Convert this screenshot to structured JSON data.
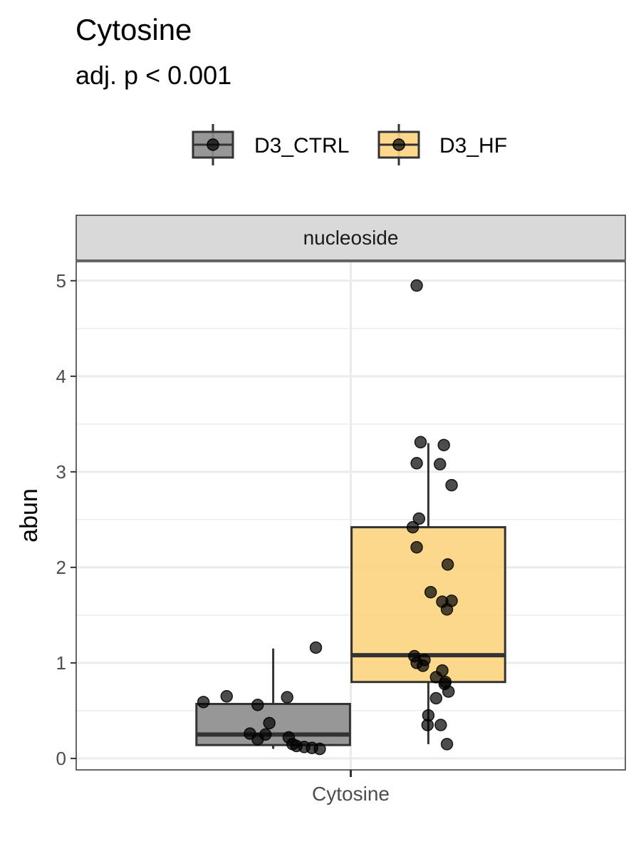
{
  "chart_data": {
    "type": "boxplot",
    "title": "Cytosine",
    "subtitle": "adj. p < 0.001",
    "xlabel": "",
    "ylabel": "abun",
    "facet": "nucleoside",
    "categories": [
      "Cytosine"
    ],
    "ylim": [
      -0.12,
      5.2
    ],
    "yticks": [
      0,
      1,
      2,
      3,
      4,
      5
    ],
    "grid": true,
    "legend_position": "top",
    "series": [
      {
        "name": "D3_CTRL",
        "color": "#8c8c8c",
        "box": {
          "min": 0.1,
          "q1": 0.14,
          "median": 0.25,
          "q3": 0.57,
          "max": 1.15
        },
        "points": [
          1.16,
          0.65,
          0.64,
          0.59,
          0.56,
          0.37,
          0.26,
          0.25,
          0.22,
          0.2,
          0.15,
          0.13,
          0.12,
          0.11,
          0.1
        ]
      },
      {
        "name": "D3_HF",
        "color": "#fbd47f",
        "box": {
          "min": 0.15,
          "q1": 0.8,
          "median": 1.08,
          "q3": 2.42,
          "max": 3.3
        },
        "points": [
          4.95,
          3.31,
          3.28,
          3.09,
          3.08,
          2.86,
          2.51,
          2.42,
          2.21,
          2.03,
          1.74,
          1.65,
          1.64,
          1.56,
          1.07,
          1.03,
          1.0,
          0.97,
          0.92,
          0.85,
          0.8,
          0.78,
          0.7,
          0.63,
          0.45,
          0.35,
          0.35,
          0.15
        ]
      }
    ]
  }
}
